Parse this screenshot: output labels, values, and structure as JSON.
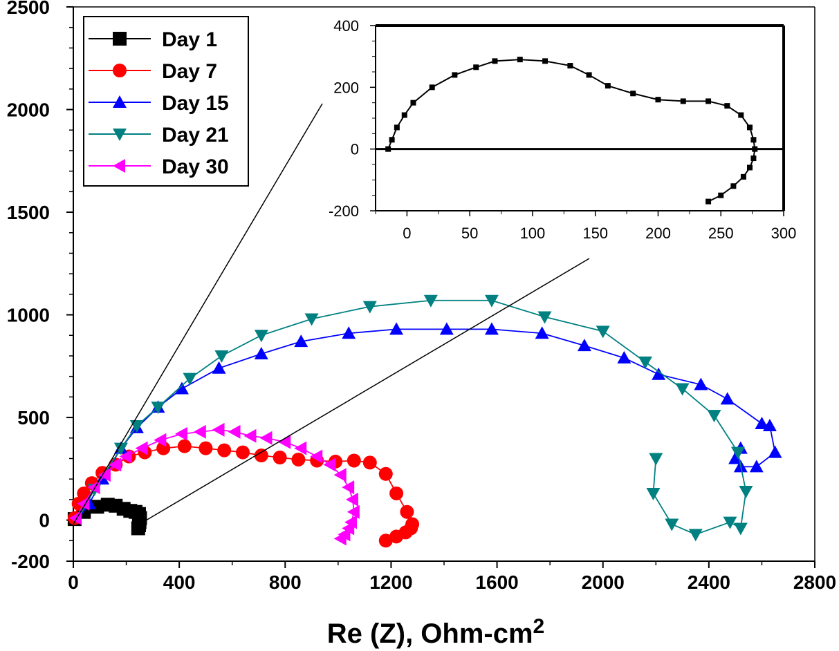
{
  "chart_data": [
    {
      "type": "line",
      "title": "",
      "xlabel": "Re (Z), Ohm-cm",
      "xlabel_sup": "2",
      "ylabel": "",
      "xlim": [
        0,
        2800
      ],
      "ylim": [
        -200,
        2500
      ],
      "x_ticks": [
        0,
        400,
        800,
        1200,
        1600,
        2000,
        2400,
        2800
      ],
      "y_ticks": [
        -200,
        0,
        500,
        1000,
        1500,
        2000,
        2500
      ],
      "legend_position": "top-left",
      "series": [
        {
          "name": "Day 1",
          "color": "#000000",
          "marker": "square",
          "x": [
            5,
            40,
            90,
            130,
            160,
            190,
            215,
            235,
            248,
            252,
            250,
            248,
            245
          ],
          "y": [
            5,
            40,
            65,
            75,
            70,
            55,
            45,
            40,
            30,
            10,
            -10,
            -25,
            -40
          ]
        },
        {
          "name": "Day 7",
          "color": "#ff0000",
          "marker": "circle",
          "x": [
            5,
            20,
            40,
            70,
            110,
            160,
            210,
            270,
            340,
            420,
            500,
            570,
            640,
            710,
            780,
            850,
            920,
            990,
            1060,
            1120,
            1180,
            1220,
            1260,
            1280,
            1275,
            1255,
            1220,
            1180
          ],
          "y": [
            10,
            80,
            130,
            180,
            230,
            270,
            310,
            330,
            350,
            360,
            350,
            340,
            330,
            315,
            305,
            295,
            290,
            285,
            290,
            280,
            225,
            130,
            40,
            -20,
            -40,
            -60,
            -80,
            -100
          ],
          "marker_step": 1
        },
        {
          "name": "Day 15",
          "color": "#0000ff",
          "marker": "triangle-up",
          "x": [
            20,
            60,
            110,
            180,
            240,
            320,
            410,
            550,
            710,
            860,
            1040,
            1220,
            1410,
            1580,
            1770,
            1930,
            2080,
            2210,
            2370,
            2470,
            2600,
            2630,
            2650,
            2580,
            2520,
            2500,
            2520
          ],
          "y": [
            10,
            80,
            200,
            350,
            450,
            550,
            640,
            740,
            810,
            870,
            910,
            930,
            930,
            930,
            910,
            850,
            790,
            710,
            660,
            590,
            470,
            460,
            330,
            260,
            260,
            300,
            350
          ],
          "marker_skip_first": 1
        },
        {
          "name": "Day 21",
          "color": "#008080",
          "marker": "triangle-down",
          "x": [
            20,
            80,
            180,
            240,
            320,
            440,
            560,
            710,
            900,
            1120,
            1350,
            1580,
            1780,
            2000,
            2160,
            2300,
            2420,
            2510,
            2540,
            2520,
            2480,
            2350,
            2260,
            2190,
            2200
          ],
          "y": [
            10,
            150,
            350,
            460,
            550,
            690,
            800,
            900,
            980,
            1040,
            1070,
            1070,
            990,
            920,
            770,
            640,
            510,
            330,
            140,
            -40,
            -10,
            -70,
            -20,
            130,
            300
          ],
          "marker_skip_first": 1
        },
        {
          "name": "Day 30",
          "color": "#ff00ff",
          "marker": "triangle-left",
          "x": [
            10,
            40,
            80,
            120,
            160,
            200,
            260,
            330,
            410,
            480,
            550,
            610,
            670,
            730,
            800,
            860,
            920,
            970,
            1010,
            1040,
            1055,
            1060,
            1050,
            1040,
            1025,
            1010
          ],
          "y": [
            10,
            80,
            160,
            220,
            270,
            310,
            350,
            390,
            420,
            430,
            440,
            430,
            410,
            400,
            380,
            350,
            310,
            270,
            220,
            160,
            100,
            40,
            -10,
            -40,
            -70,
            -90
          ]
        }
      ],
      "zoom_lines": true
    },
    {
      "type": "line",
      "title": "",
      "role": "inset",
      "xlim": [
        -25,
        300
      ],
      "ylim": [
        -200,
        400
      ],
      "x_ticks": [
        0,
        50,
        100,
        150,
        200,
        250,
        300
      ],
      "y_ticks": [
        -200,
        0,
        200,
        400
      ],
      "series": [
        {
          "name": "Day 1",
          "color": "#000000",
          "marker": "square",
          "x": [
            -15,
            -12,
            -8,
            -2,
            5,
            20,
            38,
            55,
            70,
            90,
            110,
            130,
            145,
            160,
            180,
            200,
            220,
            240,
            255,
            266,
            273,
            276,
            277,
            276,
            273,
            268,
            260,
            250,
            240
          ],
          "y": [
            0,
            30,
            70,
            110,
            150,
            200,
            240,
            265,
            285,
            290,
            285,
            270,
            240,
            205,
            180,
            160,
            155,
            155,
            140,
            110,
            70,
            30,
            0,
            -30,
            -60,
            -90,
            -120,
            -150,
            -170
          ]
        }
      ]
    }
  ],
  "legend": {
    "items": [
      {
        "label": "Day 1",
        "color": "#000000",
        "marker": "square"
      },
      {
        "label": "Day 7",
        "color": "#ff0000",
        "marker": "circle"
      },
      {
        "label": "Day 15",
        "color": "#0000ff",
        "marker": "triangle-up"
      },
      {
        "label": "Day 21",
        "color": "#008080",
        "marker": "triangle-down"
      },
      {
        "label": "Day 30",
        "color": "#ff00ff",
        "marker": "triangle-left"
      }
    ]
  },
  "axis_title": {
    "text": "Re (Z), Ohm-cm",
    "sup": "2"
  }
}
